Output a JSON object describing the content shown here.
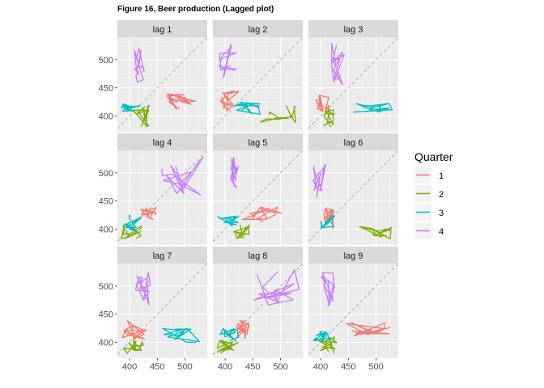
{
  "chart_data": {
    "type": "line",
    "title": "Figure 16, Beer production (Lagged plot)",
    "panels": [
      "lag 1",
      "lag 2",
      "lag 3",
      "lag 4",
      "lag 5",
      "lag 6",
      "lag 7",
      "lag 8",
      "lag 9"
    ],
    "xlim": [
      378,
      540
    ],
    "ylim": [
      372,
      540
    ],
    "x_ticks": [
      400,
      450,
      500
    ],
    "y_ticks": [
      400,
      450,
      500
    ],
    "x_tick_labels": [
      "400",
      "450",
      "500"
    ],
    "y_tick_labels": [
      "400",
      "450",
      "500"
    ],
    "legend": {
      "title": "Quarter",
      "position": "right",
      "items": [
        {
          "label": "1",
          "color": "#F8766D"
        },
        {
          "label": "2",
          "color": "#7CAE00"
        },
        {
          "label": "3",
          "color": "#00BFC4"
        },
        {
          "label": "4",
          "color": "#C77CFF"
        }
      ]
    },
    "diagonal": "dashed y = x reference line",
    "grid": true,
    "series": [
      {
        "name": "1",
        "color": "#F8766D",
        "lag_x": [
          [
            465,
            520
          ],
          [
            390,
            425
          ],
          [
            388,
            415
          ],
          [
            420,
            448
          ],
          [
            430,
            530
          ],
          [
            405,
            425
          ],
          [
            385,
            430
          ],
          [
            420,
            450
          ],
          [
            440,
            530
          ]
        ],
        "lag_y": [
          [
            410,
            440
          ],
          [
            405,
            445
          ],
          [
            405,
            440
          ],
          [
            415,
            440
          ],
          [
            410,
            440
          ],
          [
            400,
            440
          ],
          [
            405,
            440
          ],
          [
            405,
            440
          ],
          [
            410,
            435
          ]
        ]
      },
      {
        "name": "2",
        "color": "#7CAE00",
        "lag_x": [
          [
            405,
            440
          ],
          [
            460,
            535
          ],
          [
            405,
            425
          ],
          [
            385,
            425
          ],
          [
            415,
            445
          ],
          [
            470,
            530
          ],
          [
            385,
            425
          ],
          [
            385,
            425
          ],
          [
            395,
            430
          ]
        ],
        "lag_y": [
          [
            380,
            420
          ],
          [
            382,
            420
          ],
          [
            380,
            415
          ],
          [
            382,
            410
          ],
          [
            382,
            410
          ],
          [
            382,
            405
          ],
          [
            380,
            410
          ],
          [
            380,
            410
          ],
          [
            380,
            412
          ]
        ]
      },
      {
        "name": "3",
        "color": "#00BFC4",
        "lag_x": [
          [
            385,
            420
          ],
          [
            415,
            465
          ],
          [
            455,
            530
          ],
          [
            388,
            425
          ],
          [
            385,
            425
          ],
          [
            400,
            430
          ],
          [
            448,
            530
          ],
          [
            390,
            425
          ],
          [
            385,
            420
          ]
        ],
        "lag_y": [
          [
            405,
            422
          ],
          [
            400,
            425
          ],
          [
            405,
            425
          ],
          [
            395,
            425
          ],
          [
            405,
            425
          ],
          [
            400,
            425
          ],
          [
            400,
            425
          ],
          [
            400,
            425
          ],
          [
            400,
            420
          ]
        ]
      },
      {
        "name": "4",
        "color": "#C77CFF",
        "lag_x": [
          [
            408,
            428
          ],
          [
            388,
            420
          ],
          [
            418,
            448
          ],
          [
            450,
            535
          ],
          [
            408,
            425
          ],
          [
            385,
            415
          ],
          [
            410,
            440
          ],
          [
            450,
            535
          ],
          [
            400,
            425
          ]
        ],
        "lag_y": [
          [
            455,
            530
          ],
          [
            460,
            530
          ],
          [
            455,
            530
          ],
          [
            460,
            530
          ],
          [
            460,
            530
          ],
          [
            455,
            530
          ],
          [
            465,
            530
          ],
          [
            465,
            530
          ],
          [
            460,
            530
          ]
        ]
      }
    ]
  }
}
